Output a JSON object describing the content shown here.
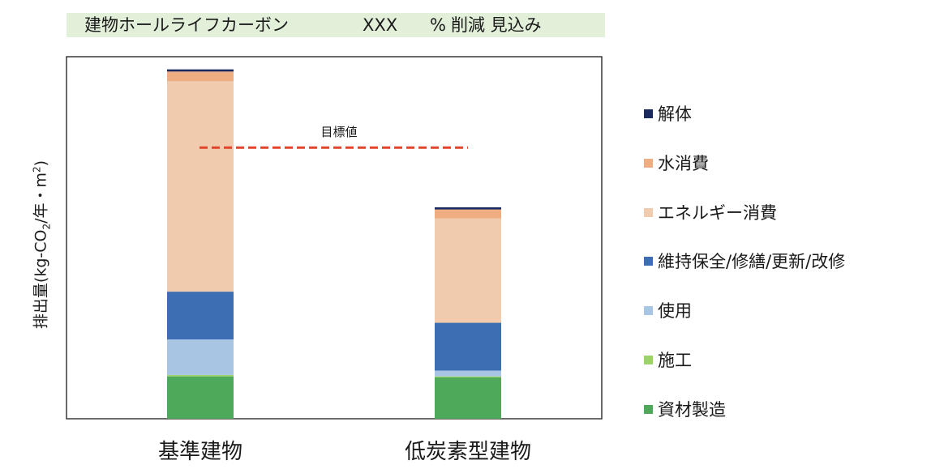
{
  "banner": {
    "title": "建物ホールライフカーボン",
    "value": "XXX",
    "unit": "%",
    "text": "削減 見込み"
  },
  "chart_data": {
    "type": "bar",
    "stacked": true,
    "title": "",
    "ylabel": "排出量(kg-CO",
    "ylabel_sub": "2",
    "ylabel_mid": "/年・m",
    "ylabel_sup": "2",
    "ylabel_end": ")",
    "xlabel": "",
    "ylim": [
      0,
      100
    ],
    "yticks_visible": false,
    "grid": false,
    "legend_position": "right",
    "categories": [
      "基準建物",
      "低炭素型建物"
    ],
    "series": [
      {
        "name": "資材製造",
        "color": "#4eaa5a",
        "values": [
          11.7,
          11.4
        ]
      },
      {
        "name": "施工",
        "color": "#9bd36a",
        "values": [
          0.4,
          0.3
        ]
      },
      {
        "name": "使用",
        "color": "#a8c5e4",
        "values": [
          9.8,
          1.6
        ]
      },
      {
        "name": "維持保全/修繕/更新/改修",
        "color": "#3d6eb3",
        "values": [
          13.2,
          13.2
        ]
      },
      {
        "name": "エネルギー消費",
        "color": "#f1cbae",
        "values": [
          58.1,
          28.8
        ]
      },
      {
        "name": "水消費",
        "color": "#eeae82",
        "values": [
          2.7,
          2.5
        ]
      },
      {
        "name": "解体",
        "color": "#1b2a5e",
        "values": [
          0.6,
          0.6
        ]
      }
    ],
    "target": {
      "label": "目標値",
      "value": 74.9,
      "color": "#e3452c"
    }
  }
}
